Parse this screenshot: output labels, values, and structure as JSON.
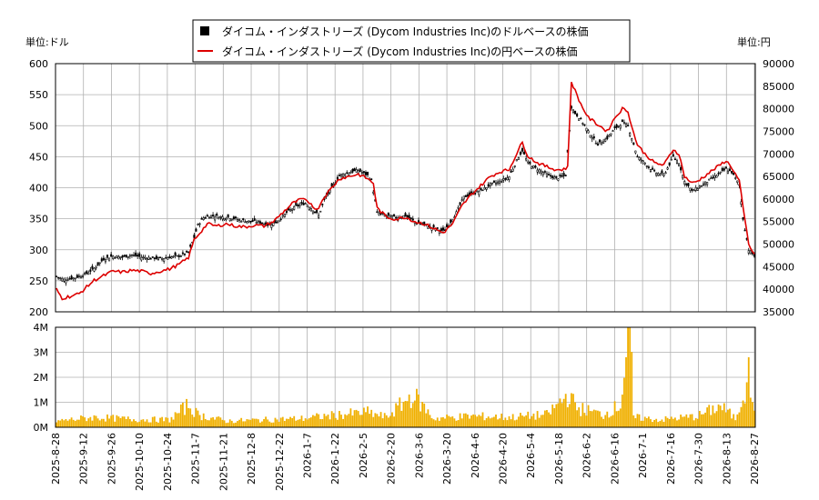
{
  "chart_data": {
    "type": "candlestick-with-volume",
    "legend": [
      "ダイコム・インダストリーズ (Dycom Industries Inc)のドルベースの株価",
      "ダイコム・インダストリーズ (Dycom Industries Inc)の円ベースの株価"
    ],
    "left_unit": "単位:ドル",
    "right_unit": "単位:円",
    "x_tick_labels": [
      "2025-8-28",
      "2025-9-12",
      "2025-9-26",
      "2025-10-10",
      "2025-10-24",
      "2025-11-7",
      "2025-11-21",
      "2025-12-8",
      "2025-12-22",
      "2026-1-7",
      "2026-1-22",
      "2026-2-5",
      "2026-2-20",
      "2026-3-6",
      "2026-3-20",
      "2026-4-6",
      "2026-4-20",
      "2026-5-4",
      "2026-5-18",
      "2026-6-2",
      "2026-6-16",
      "2026-7-1",
      "2026-7-16",
      "2026-7-30",
      "2026-8-13",
      "2026-8-27"
    ],
    "price_axis_usd": {
      "min": 200,
      "max": 600,
      "ticks": [
        200,
        250,
        300,
        350,
        400,
        450,
        500,
        550,
        600
      ]
    },
    "price_axis_jpy": {
      "min": 35000,
      "max": 90000,
      "ticks": [
        35000,
        40000,
        45000,
        50000,
        55000,
        60000,
        65000,
        70000,
        75000,
        80000,
        85000,
        90000
      ]
    },
    "volume_axis": {
      "min": 0,
      "max": 4000000,
      "tick_labels": [
        "0M",
        "1M",
        "2M",
        "3M",
        "4M"
      ],
      "ticks": [
        0,
        1000000,
        2000000,
        3000000,
        4000000
      ]
    },
    "usd_close_keypoints": [
      [
        0,
        257
      ],
      [
        4,
        252
      ],
      [
        10,
        255
      ],
      [
        16,
        262
      ],
      [
        20,
        270
      ],
      [
        25,
        285
      ],
      [
        30,
        290
      ],
      [
        35,
        288
      ],
      [
        40,
        292
      ],
      [
        45,
        288
      ],
      [
        50,
        287
      ],
      [
        55,
        286
      ],
      [
        60,
        288
      ],
      [
        65,
        290
      ],
      [
        70,
        296
      ],
      [
        73,
        320
      ],
      [
        75,
        340
      ],
      [
        78,
        352
      ],
      [
        82,
        355
      ],
      [
        87,
        353
      ],
      [
        92,
        352
      ],
      [
        97,
        348
      ],
      [
        102,
        346
      ],
      [
        107,
        345
      ],
      [
        112,
        340
      ],
      [
        117,
        345
      ],
      [
        122,
        360
      ],
      [
        127,
        370
      ],
      [
        132,
        375
      ],
      [
        137,
        362
      ],
      [
        139,
        355
      ],
      [
        142,
        380
      ],
      [
        146,
        400
      ],
      [
        150,
        420
      ],
      [
        155,
        425
      ],
      [
        160,
        428
      ],
      [
        165,
        420
      ],
      [
        167,
        412
      ],
      [
        170,
        360
      ],
      [
        175,
        355
      ],
      [
        180,
        352
      ],
      [
        185,
        355
      ],
      [
        190,
        345
      ],
      [
        195,
        340
      ],
      [
        200,
        335
      ],
      [
        205,
        330
      ],
      [
        208,
        340
      ],
      [
        212,
        360
      ],
      [
        216,
        385
      ],
      [
        220,
        390
      ],
      [
        225,
        395
      ],
      [
        230,
        405
      ],
      [
        235,
        410
      ],
      [
        240,
        418
      ],
      [
        245,
        450
      ],
      [
        247,
        460
      ],
      [
        250,
        440
      ],
      [
        255,
        430
      ],
      [
        258,
        425
      ],
      [
        261,
        420
      ],
      [
        265,
        415
      ],
      [
        268,
        418
      ],
      [
        270,
        420
      ],
      [
        273,
        530
      ],
      [
        275,
        520
      ],
      [
        278,
        510
      ],
      [
        282,
        490
      ],
      [
        287,
        470
      ],
      [
        292,
        480
      ],
      [
        296,
        495
      ],
      [
        300,
        505
      ],
      [
        303,
        500
      ],
      [
        305,
        480
      ],
      [
        308,
        450
      ],
      [
        312,
        440
      ],
      [
        317,
        425
      ],
      [
        322,
        420
      ],
      [
        327,
        450
      ],
      [
        330,
        440
      ],
      [
        333,
        410
      ],
      [
        337,
        395
      ],
      [
        340,
        400
      ],
      [
        345,
        410
      ],
      [
        350,
        420
      ],
      [
        355,
        430
      ],
      [
        358,
        425
      ],
      [
        362,
        405
      ],
      [
        364,
        350
      ],
      [
        367,
        300
      ],
      [
        370,
        290
      ]
    ],
    "jpy_close_keypoints": [
      [
        0,
        40000
      ],
      [
        3,
        38000
      ],
      [
        8,
        38500
      ],
      [
        12,
        39000
      ],
      [
        16,
        40500
      ],
      [
        20,
        42000
      ],
      [
        25,
        43000
      ],
      [
        30,
        44000
      ],
      [
        35,
        43800
      ],
      [
        40,
        44200
      ],
      [
        45,
        44000
      ],
      [
        50,
        43500
      ],
      [
        55,
        44000
      ],
      [
        60,
        44500
      ],
      [
        65,
        45500
      ],
      [
        70,
        47000
      ],
      [
        73,
        51000
      ],
      [
        76,
        52500
      ],
      [
        80,
        54500
      ],
      [
        85,
        54000
      ],
      [
        90,
        54500
      ],
      [
        95,
        54000
      ],
      [
        100,
        53800
      ],
      [
        105,
        54200
      ],
      [
        110,
        54000
      ],
      [
        115,
        55000
      ],
      [
        120,
        57000
      ],
      [
        125,
        59000
      ],
      [
        130,
        60000
      ],
      [
        135,
        59000
      ],
      [
        138,
        57500
      ],
      [
        142,
        60500
      ],
      [
        146,
        62500
      ],
      [
        150,
        64500
      ],
      [
        155,
        65000
      ],
      [
        160,
        65500
      ],
      [
        165,
        64500
      ],
      [
        168,
        63500
      ],
      [
        170,
        58000
      ],
      [
        175,
        56000
      ],
      [
        180,
        55500
      ],
      [
        185,
        56000
      ],
      [
        190,
        55000
      ],
      [
        195,
        54500
      ],
      [
        200,
        53500
      ],
      [
        205,
        52500
      ],
      [
        210,
        54500
      ],
      [
        215,
        58500
      ],
      [
        220,
        61000
      ],
      [
        225,
        63000
      ],
      [
        230,
        65000
      ],
      [
        235,
        66000
      ],
      [
        240,
        66500
      ],
      [
        245,
        71000
      ],
      [
        247,
        72500
      ],
      [
        250,
        69500
      ],
      [
        255,
        68000
      ],
      [
        258,
        67500
      ],
      [
        261,
        67000
      ],
      [
        265,
        66500
      ],
      [
        268,
        66500
      ],
      [
        271,
        67000
      ],
      [
        273,
        86000
      ],
      [
        275,
        84000
      ],
      [
        278,
        81000
      ],
      [
        282,
        78000
      ],
      [
        287,
        76500
      ],
      [
        292,
        75000
      ],
      [
        296,
        78000
      ],
      [
        300,
        80000
      ],
      [
        303,
        79500
      ],
      [
        305,
        76000
      ],
      [
        308,
        72000
      ],
      [
        312,
        70000
      ],
      [
        317,
        68000
      ],
      [
        322,
        67500
      ],
      [
        327,
        71000
      ],
      [
        330,
        70000
      ],
      [
        333,
        65000
      ],
      [
        337,
        63500
      ],
      [
        340,
        64000
      ],
      [
        345,
        65500
      ],
      [
        350,
        67000
      ],
      [
        355,
        68500
      ],
      [
        358,
        67000
      ],
      [
        362,
        64000
      ],
      [
        364,
        58000
      ],
      [
        367,
        50000
      ],
      [
        370,
        47500
      ]
    ],
    "volume_keypoints": [
      [
        0,
        250000
      ],
      [
        20,
        400000
      ],
      [
        40,
        320000
      ],
      [
        60,
        300000
      ],
      [
        70,
        900000
      ],
      [
        75,
        500000
      ],
      [
        90,
        250000
      ],
      [
        110,
        300000
      ],
      [
        130,
        350000
      ],
      [
        150,
        500000
      ],
      [
        165,
        600000
      ],
      [
        175,
        400000
      ],
      [
        189,
        1300000
      ],
      [
        200,
        350000
      ],
      [
        220,
        450000
      ],
      [
        240,
        400000
      ],
      [
        260,
        500000
      ],
      [
        272,
        1350000
      ],
      [
        275,
        800000
      ],
      [
        290,
        500000
      ],
      [
        299,
        900000
      ],
      [
        304,
        4200000
      ],
      [
        306,
        400000
      ],
      [
        320,
        300000
      ],
      [
        340,
        450000
      ],
      [
        352,
        850000
      ],
      [
        360,
        350000
      ],
      [
        366,
        1800000
      ],
      [
        367,
        2800000
      ],
      [
        368,
        900000
      ],
      [
        370,
        950000
      ]
    ],
    "colors": {
      "usd": "#000000",
      "jpy": "#dd0000",
      "volume": "#f0b000",
      "grid": "#b0b0b0"
    }
  }
}
